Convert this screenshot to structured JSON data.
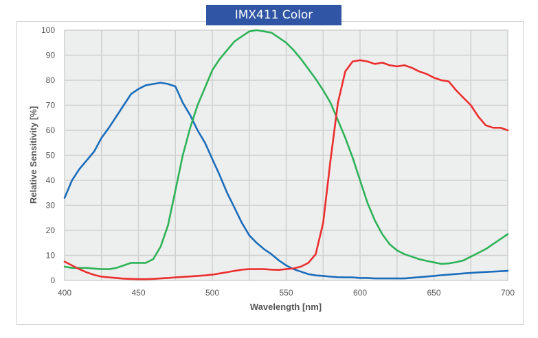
{
  "title": "IMX411 Color",
  "colors": {
    "title_bg": "#2f55a4",
    "plot_bg": "#edeeee",
    "grid": "#d0d0d0",
    "blue": "#1a6dbb",
    "green": "#2db357",
    "red": "#ec2d2d"
  },
  "chart_data": {
    "type": "line",
    "title": "IMX411 Color",
    "xlabel": "Wavelength [nm]",
    "ylabel": "Relative Sensitivity [%]",
    "xlim": [
      400,
      700
    ],
    "ylim": [
      0,
      100
    ],
    "xticks": [
      400,
      450,
      500,
      550,
      600,
      650,
      700
    ],
    "yticks": [
      0,
      10,
      20,
      30,
      40,
      50,
      60,
      70,
      80,
      90,
      100
    ],
    "grid": true,
    "grid_x_step": 25,
    "legend": "none",
    "series": [
      {
        "name": "Blue",
        "color": "#1a6dbb",
        "x": [
          400,
          405,
          410,
          415,
          420,
          425,
          430,
          435,
          440,
          445,
          450,
          455,
          460,
          465,
          470,
          475,
          480,
          485,
          490,
          495,
          500,
          505,
          510,
          515,
          520,
          525,
          530,
          535,
          540,
          545,
          550,
          555,
          560,
          565,
          570,
          575,
          580,
          585,
          590,
          595,
          600,
          605,
          610,
          620,
          630,
          640,
          650,
          660,
          670,
          680,
          690,
          700
        ],
        "values": [
          33,
          40,
          44.5,
          48,
          51.5,
          57,
          61,
          65.5,
          70,
          74.5,
          76.5,
          78,
          78.5,
          79,
          78.5,
          77.5,
          71,
          66,
          60,
          55,
          48.5,
          42,
          35,
          29,
          23,
          18,
          15,
          12.5,
          10.5,
          8,
          6,
          4.5,
          3.5,
          2.5,
          2,
          1.8,
          1.5,
          1.3,
          1.2,
          1.2,
          1,
          1,
          0.8,
          0.8,
          0.8,
          1.3,
          1.8,
          2.3,
          2.8,
          3.2,
          3.5,
          3.8
        ]
      },
      {
        "name": "Green",
        "color": "#2db357",
        "x": [
          400,
          405,
          410,
          415,
          420,
          425,
          430,
          435,
          440,
          445,
          450,
          455,
          460,
          465,
          470,
          475,
          480,
          485,
          490,
          495,
          500,
          505,
          510,
          515,
          520,
          525,
          530,
          535,
          540,
          545,
          550,
          555,
          560,
          565,
          570,
          575,
          580,
          585,
          590,
          595,
          600,
          605,
          610,
          615,
          620,
          625,
          630,
          635,
          640,
          645,
          650,
          655,
          660,
          665,
          670,
          675,
          680,
          685,
          690,
          695,
          700
        ],
        "values": [
          5.5,
          5,
          5,
          5,
          4.7,
          4.5,
          4.5,
          5,
          6,
          7,
          7,
          7,
          8.5,
          13.5,
          22,
          36,
          50,
          61,
          70,
          77,
          84,
          88.5,
          92,
          95.5,
          97.5,
          99.5,
          100,
          99.5,
          99,
          97,
          95,
          92,
          88.5,
          84.5,
          80.5,
          76,
          71,
          64,
          57,
          49,
          40,
          31,
          24,
          18.5,
          14.5,
          12,
          10.5,
          9.5,
          8.5,
          7.8,
          7.2,
          6.6,
          6.8,
          7.3,
          8,
          9.5,
          11,
          12.5,
          14.5,
          16.5,
          18.5
        ]
      },
      {
        "name": "Red",
        "color": "#ec2d2d",
        "x": [
          400,
          405,
          410,
          415,
          420,
          425,
          430,
          435,
          440,
          445,
          450,
          455,
          460,
          465,
          470,
          475,
          480,
          485,
          490,
          495,
          500,
          505,
          510,
          515,
          520,
          525,
          530,
          535,
          540,
          545,
          550,
          555,
          560,
          565,
          570,
          575,
          580,
          585,
          590,
          595,
          600,
          605,
          610,
          615,
          620,
          625,
          630,
          635,
          640,
          645,
          650,
          655,
          660,
          665,
          670,
          675,
          680,
          685,
          690,
          695,
          700
        ],
        "values": [
          7.5,
          6,
          4.5,
          3.2,
          2.2,
          1.5,
          1.2,
          1,
          0.7,
          0.6,
          0.5,
          0.5,
          0.6,
          0.8,
          1,
          1.2,
          1.4,
          1.6,
          1.8,
          2,
          2.3,
          2.8,
          3.3,
          3.8,
          4.3,
          4.5,
          4.5,
          4.5,
          4.3,
          4.2,
          4.5,
          4.8,
          5.5,
          7,
          10.5,
          23,
          48,
          71,
          83.5,
          87.5,
          88,
          87.5,
          86.5,
          87,
          86,
          85.5,
          86,
          85,
          83.5,
          82.5,
          81,
          80,
          79.5,
          76,
          73,
          70,
          65.5,
          62,
          61,
          61,
          60
        ]
      }
    ]
  }
}
